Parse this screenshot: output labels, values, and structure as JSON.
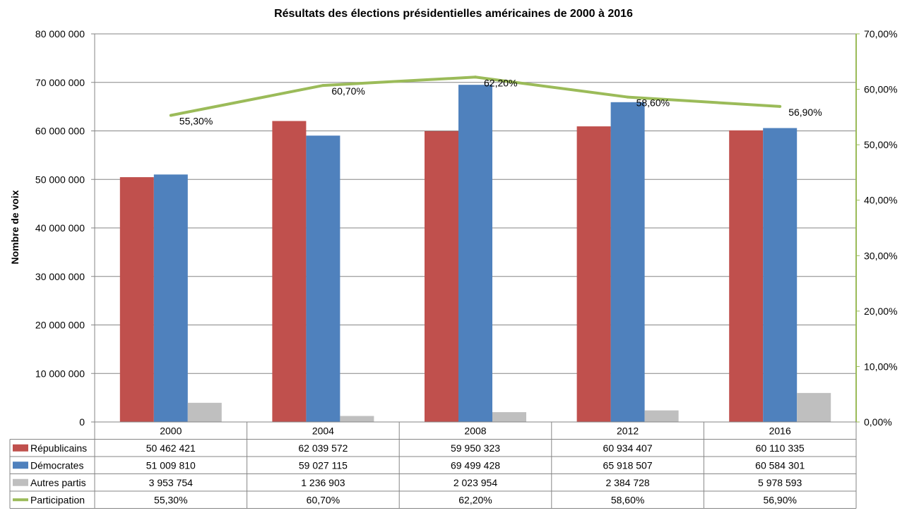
{
  "chart_data": {
    "type": "bar",
    "title": "Résultats des élections présidentielles américaines de 2000 à 2016",
    "xlabel": "",
    "ylabel": "Nombre de voix",
    "categories": [
      "2000",
      "2004",
      "2008",
      "2012",
      "2016"
    ],
    "ylim": [
      0,
      80000000
    ],
    "y2lim": [
      0,
      0.7
    ],
    "grid": true,
    "legend": "data table",
    "y_ticks": [
      "0",
      "10 000 000",
      "20 000 000",
      "30 000 000",
      "40 000 000",
      "50 000 000",
      "60 000 000",
      "70 000 000",
      "80 000 000"
    ],
    "y2_ticks": [
      "0,00%",
      "10,00%",
      "20,00%",
      "30,00%",
      "40,00%",
      "50,00%",
      "60,00%",
      "70,00%"
    ],
    "series": [
      {
        "name": "Républicains",
        "type": "bar",
        "color": "#C0504D",
        "values": [
          50462421,
          62039572,
          59950323,
          60934407,
          60110335
        ],
        "labels": [
          "50 462 421",
          "62 039 572",
          "59 950 323",
          "60 934 407",
          "60 110 335"
        ]
      },
      {
        "name": "Démocrates",
        "type": "bar",
        "color": "#4F81BD",
        "values": [
          51009810,
          59027115,
          69499428,
          65918507,
          60584301
        ],
        "labels": [
          "51 009 810",
          "59 027 115",
          "69 499 428",
          "65 918 507",
          "60 584 301"
        ]
      },
      {
        "name": "Autres partis",
        "type": "bar",
        "color": "#BFBFBF",
        "values": [
          3953754,
          1236903,
          2023954,
          2384728,
          5978593
        ],
        "labels": [
          "3 953 754",
          "1 236 903",
          "2 023 954",
          "2 384 728",
          "5 978 593"
        ]
      },
      {
        "name": "Participation",
        "type": "line",
        "axis": "secondary",
        "color": "#9BBB59",
        "values": [
          0.553,
          0.607,
          0.622,
          0.586,
          0.569
        ],
        "labels": [
          "55,30%",
          "60,70%",
          "62,20%",
          "58,60%",
          "56,90%"
        ]
      }
    ]
  }
}
